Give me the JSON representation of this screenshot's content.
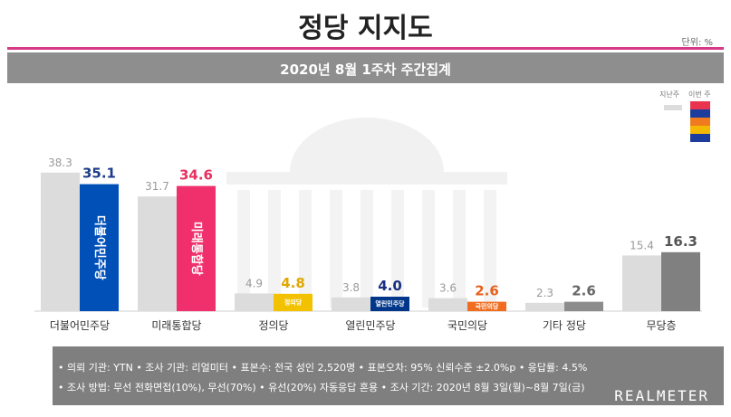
{
  "header": {
    "title": "정당 지지도",
    "unit": "단위: %",
    "subtitle": "2020년 8월 1주차 주간집계"
  },
  "legend": {
    "prev_label": "지난주",
    "curr_label": "이번 주"
  },
  "colors": {
    "prev": "#dcdcdc",
    "legend_curr": [
      "#e8344e",
      "#1c3d9c",
      "#f07b1e",
      "#f5b800",
      "#1c3d9c"
    ]
  },
  "chart_data": {
    "type": "bar",
    "title": "정당 지지도",
    "categories": [
      "더불어민주당",
      "미래통합당",
      "정의당",
      "열린민주당",
      "국민의당",
      "기타 정당",
      "무당층"
    ],
    "series": [
      {
        "name": "지난주",
        "values": [
          38.3,
          31.7,
          4.9,
          3.8,
          3.6,
          2.3,
          15.4
        ],
        "color": "#dcdcdc"
      },
      {
        "name": "이번 주",
        "values": [
          35.1,
          34.6,
          4.8,
          4.0,
          2.6,
          2.6,
          16.3
        ],
        "colors": [
          "#0050b8",
          "#f0306c",
          "#f2c200",
          "#00368a",
          "#f06d1f",
          "#8c8c8c",
          "#808080"
        ]
      }
    ],
    "value_colors": [
      "#1a3a8a",
      "#e8305e",
      "#e0a800",
      "#1a2f80",
      "#e8601c",
      "#666666",
      "#555555"
    ],
    "ylim": [
      0,
      45
    ],
    "grid": false,
    "legend": "top-right"
  },
  "bar_text": [
    "더불어민주당",
    "미래통합당",
    "정의당",
    "열린민주당",
    "국민의당",
    "",
    ""
  ],
  "footer": {
    "line1": "• 의뢰 기관: YTN • 조사 기관: 리얼미터 • 표본수: 전국 성인 2,520명 • 표본오차: 95% 신뢰수준 ±2.0%p • 응답률: 4.5%",
    "line2": "• 조사 방법: 무선 전화면접(10%), 무선(70%) • 유선(20%) 자동응답 혼용 • 조사 기간: 2020년 8월 3일(월)~8월 7일(금)",
    "brand": "REALMETER"
  }
}
